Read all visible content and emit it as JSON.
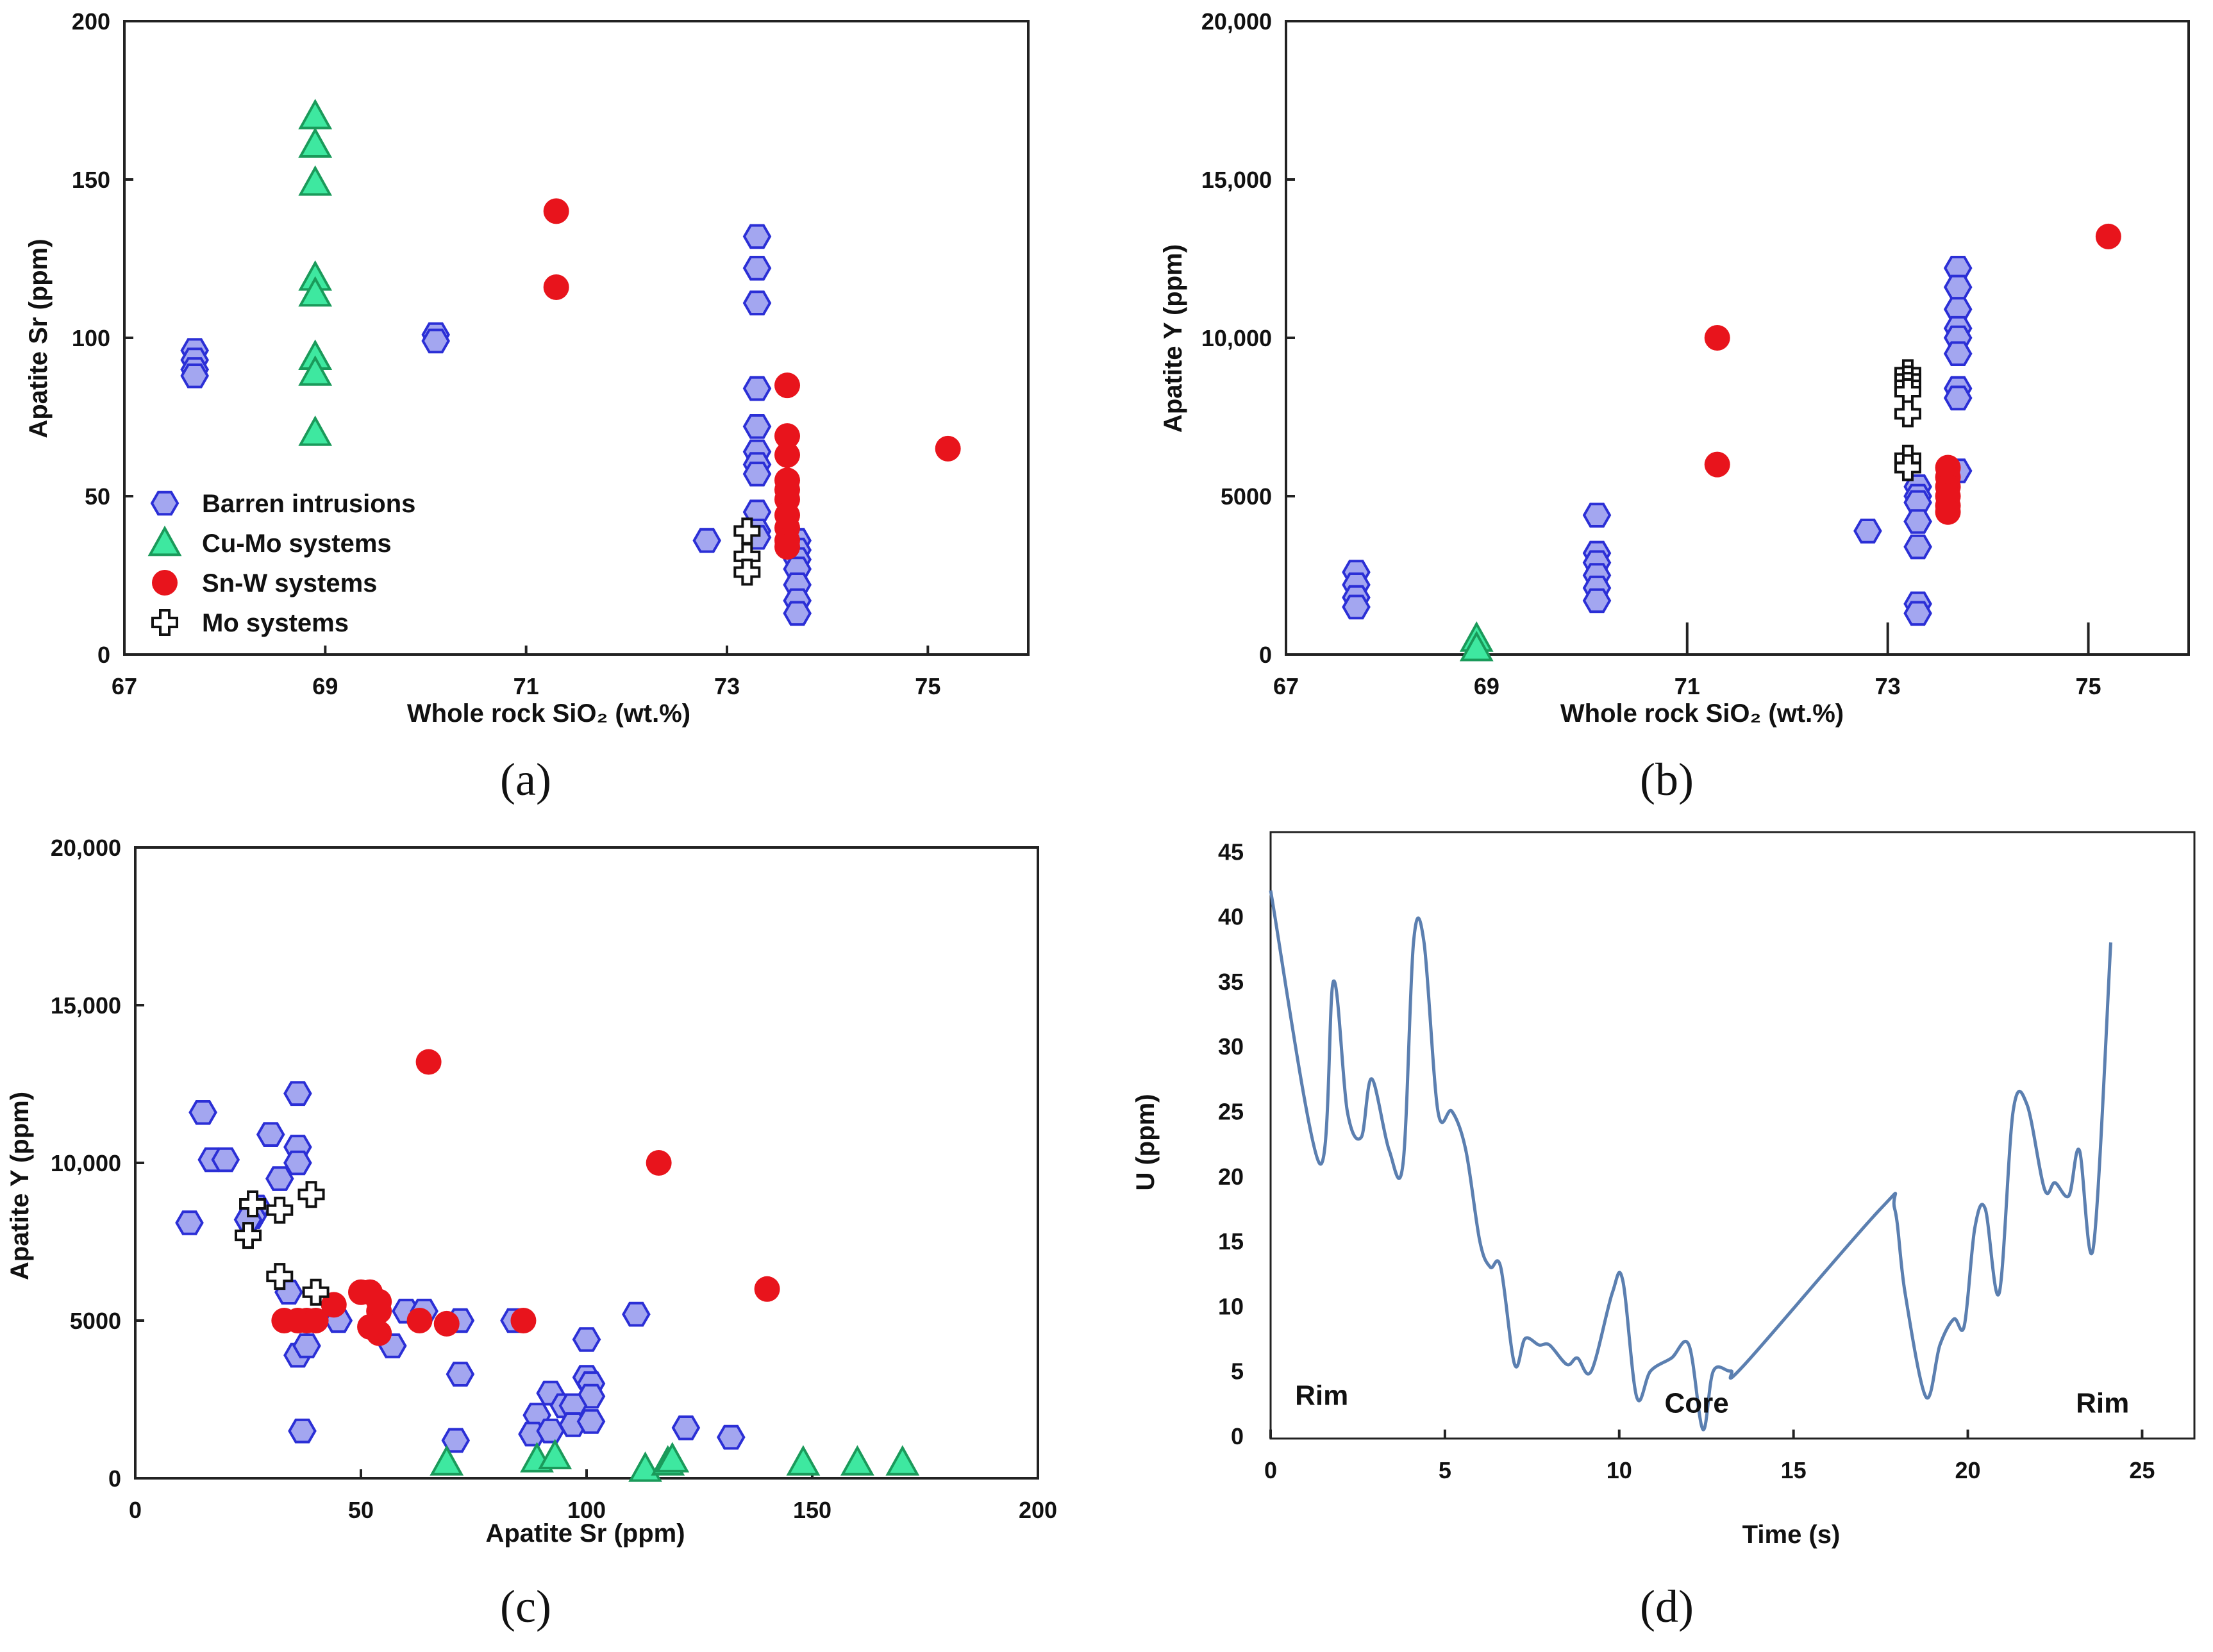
{
  "colors": {
    "barren_fill": "#a3a6f0",
    "barren_stroke": "#2b2fd6",
    "cumo_fill": "#3ee8a0",
    "cumo_stroke": "#1a9a5a",
    "snw_fill": "#e8141c",
    "mo_fill": "#ffffff",
    "mo_stroke": "#111111",
    "line": "#5b7fb0"
  },
  "legend": [
    {
      "key": "barren",
      "label": "Barren intrusions"
    },
    {
      "key": "cumo",
      "label": "Cu-Mo systems"
    },
    {
      "key": "snw",
      "label": "Sn-W systems"
    },
    {
      "key": "mo",
      "label": "Mo systems"
    }
  ],
  "chart_data": [
    {
      "id": "a",
      "panel_label": "(a)",
      "type": "scatter",
      "xlabel": "Whole rock SiO₂ (wt.%)",
      "ylabel": "Apatite Sr (ppm)",
      "xlim": [
        67,
        76
      ],
      "ylim": [
        0,
        200
      ],
      "xticks": [
        67,
        69,
        71,
        73,
        75
      ],
      "xtick_labels": [
        "67",
        "69",
        "71",
        "73",
        "75"
      ],
      "yticks": [
        0,
        50,
        100,
        150,
        200
      ],
      "ytick_labels": [
        "0",
        "50",
        "100",
        "150",
        "200"
      ],
      "legend_position": "bottom-left",
      "series": [
        {
          "name": "Barren intrusions",
          "key": "barren",
          "points": [
            [
              67.7,
              96
            ],
            [
              67.7,
              93
            ],
            [
              67.7,
              90
            ],
            [
              67.7,
              88
            ],
            [
              70.1,
              101
            ],
            [
              70.1,
              99
            ],
            [
              72.8,
              36
            ],
            [
              73.3,
              132
            ],
            [
              73.3,
              122
            ],
            [
              73.3,
              111
            ],
            [
              73.3,
              84
            ],
            [
              73.3,
              72
            ],
            [
              73.3,
              64
            ],
            [
              73.3,
              60
            ],
            [
              73.3,
              57
            ],
            [
              73.3,
              45
            ],
            [
              73.3,
              39
            ],
            [
              73.3,
              37
            ],
            [
              73.7,
              36
            ],
            [
              73.7,
              33
            ],
            [
              73.7,
              30
            ],
            [
              73.7,
              27
            ],
            [
              73.7,
              22
            ],
            [
              73.7,
              17
            ],
            [
              73.7,
              13
            ]
          ]
        },
        {
          "name": "Cu-Mo systems",
          "key": "cumo",
          "points": [
            [
              68.9,
              170
            ],
            [
              68.9,
              161
            ],
            [
              68.9,
              149
            ],
            [
              68.9,
              119
            ],
            [
              68.9,
              114
            ],
            [
              68.9,
              94
            ],
            [
              68.9,
              89
            ],
            [
              68.9,
              70
            ]
          ]
        },
        {
          "name": "Sn-W systems",
          "key": "snw",
          "points": [
            [
              71.3,
              140
            ],
            [
              71.3,
              116
            ],
            [
              73.6,
              85
            ],
            [
              73.6,
              69
            ],
            [
              73.6,
              63
            ],
            [
              73.6,
              55
            ],
            [
              73.6,
              52
            ],
            [
              73.6,
              49
            ],
            [
              73.6,
              44
            ],
            [
              73.6,
              40
            ],
            [
              73.6,
              36
            ],
            [
              73.6,
              34
            ],
            [
              75.2,
              65
            ]
          ]
        },
        {
          "name": "Mo systems",
          "key": "mo",
          "points": [
            [
              73.2,
              39
            ],
            [
              73.2,
              31
            ],
            [
              73.2,
              26
            ]
          ]
        }
      ]
    },
    {
      "id": "b",
      "panel_label": "(b)",
      "type": "scatter",
      "xlabel": "Whole rock SiO₂ (wt.%)",
      "ylabel": "Apatite Y (ppm)",
      "xlim": [
        67,
        76
      ],
      "ylim": [
        0,
        20000
      ],
      "xticks": [
        67,
        69,
        71,
        73,
        75
      ],
      "xtick_labels": [
        "67",
        "69",
        "71",
        "73",
        "75"
      ],
      "yticks": [
        0,
        5000,
        10000,
        15000,
        20000
      ],
      "ytick_labels": [
        "0",
        "5000",
        "10,000",
        "15,000",
        "20,000"
      ],
      "series": [
        {
          "name": "Barren intrusions",
          "key": "barren",
          "points": [
            [
              67.7,
              2600
            ],
            [
              67.7,
              2200
            ],
            [
              67.7,
              1800
            ],
            [
              67.7,
              1500
            ],
            [
              70.1,
              4400
            ],
            [
              70.1,
              3200
            ],
            [
              70.1,
              2900
            ],
            [
              70.1,
              2500
            ],
            [
              70.1,
              2100
            ],
            [
              70.1,
              1700
            ],
            [
              72.8,
              3900
            ],
            [
              73.3,
              5300
            ],
            [
              73.3,
              5000
            ],
            [
              73.3,
              4800
            ],
            [
              73.3,
              4200
            ],
            [
              73.3,
              3400
            ],
            [
              73.3,
              1600
            ],
            [
              73.3,
              1300
            ],
            [
              73.7,
              12200
            ],
            [
              73.7,
              11600
            ],
            [
              73.7,
              10900
            ],
            [
              73.7,
              10300
            ],
            [
              73.7,
              10000
            ],
            [
              73.7,
              9500
            ],
            [
              73.7,
              8400
            ],
            [
              73.7,
              8100
            ],
            [
              73.7,
              5800
            ]
          ]
        },
        {
          "name": "Cu-Mo systems",
          "key": "cumo",
          "points": [
            [
              68.9,
              500
            ],
            [
              68.9,
              200
            ]
          ]
        },
        {
          "name": "Sn-W systems",
          "key": "snw",
          "points": [
            [
              71.3,
              10000
            ],
            [
              71.3,
              6000
            ],
            [
              73.6,
              5900
            ],
            [
              73.6,
              5600
            ],
            [
              73.6,
              5300
            ],
            [
              73.6,
              5000
            ],
            [
              73.6,
              4700
            ],
            [
              73.6,
              4500
            ],
            [
              75.2,
              13200
            ]
          ]
        },
        {
          "name": "Mo systems",
          "key": "mo",
          "points": [
            [
              73.2,
              8900
            ],
            [
              73.2,
              8700
            ],
            [
              73.2,
              8500
            ],
            [
              73.2,
              8300
            ],
            [
              73.2,
              7600
            ],
            [
              73.2,
              6200
            ],
            [
              73.2,
              5900
            ]
          ]
        }
      ]
    },
    {
      "id": "c",
      "panel_label": "(c)",
      "type": "scatter",
      "xlabel": "Apatite Sr (ppm)",
      "ylabel": "Apatite Y (ppm)",
      "xlim": [
        0,
        200
      ],
      "ylim": [
        0,
        20000
      ],
      "xticks": [
        0,
        50,
        100,
        150,
        200
      ],
      "xtick_labels": [
        "0",
        "50",
        "100",
        "150",
        "200"
      ],
      "yticks": [
        0,
        5000,
        10000,
        15000,
        20000
      ],
      "ytick_labels": [
        "0",
        "5000",
        "10,000",
        "15,000",
        "20,000"
      ],
      "series": [
        {
          "name": "Barren intrusions",
          "key": "barren",
          "points": [
            [
              12,
              8100
            ],
            [
              15,
              11600
            ],
            [
              17,
              10100
            ],
            [
              20,
              10100
            ],
            [
              30,
              10900
            ],
            [
              27,
              8600
            ],
            [
              26,
              8300
            ],
            [
              25,
              8200
            ],
            [
              32,
              9500
            ],
            [
              36,
              12200
            ],
            [
              36,
              10500
            ],
            [
              36,
              10000
            ],
            [
              34,
              5900
            ],
            [
              36,
              3900
            ],
            [
              38,
              4200
            ],
            [
              37,
              1500
            ],
            [
              45,
              5000
            ],
            [
              57,
              4200
            ],
            [
              60,
              5300
            ],
            [
              64,
              5300
            ],
            [
              72,
              5000
            ],
            [
              72,
              3300
            ],
            [
              71,
              1200
            ],
            [
              84,
              5000
            ],
            [
              100,
              4400
            ],
            [
              100,
              3200
            ],
            [
              101,
              3000
            ],
            [
              101,
              2600
            ],
            [
              92,
              2700
            ],
            [
              89,
              2000
            ],
            [
              88,
              1400
            ],
            [
              92,
              1500
            ],
            [
              95,
              2300
            ],
            [
              97,
              2300
            ],
            [
              97,
              1700
            ],
            [
              101,
              1800
            ],
            [
              111,
              5200
            ],
            [
              122,
              1600
            ],
            [
              132,
              1300
            ]
          ]
        },
        {
          "name": "Sn-W systems",
          "key": "snw",
          "points": [
            [
              65,
              13200
            ],
            [
              116,
              10000
            ],
            [
              140,
              6000
            ],
            [
              33,
              5000
            ],
            [
              36,
              5000
            ],
            [
              38,
              5000
            ],
            [
              40,
              5000
            ],
            [
              44,
              5500
            ],
            [
              50,
              5900
            ],
            [
              52,
              5900
            ],
            [
              54,
              5600
            ],
            [
              54,
              5300
            ],
            [
              52,
              4800
            ],
            [
              54,
              4600
            ],
            [
              63,
              5000
            ],
            [
              69,
              4900
            ],
            [
              86,
              5000
            ]
          ]
        },
        {
          "name": "Mo systems",
          "key": "mo",
          "points": [
            [
              26,
              8700
            ],
            [
              25,
              7700
            ],
            [
              32,
              8500
            ],
            [
              39,
              9000
            ],
            [
              32,
              6400
            ],
            [
              40,
              5900
            ]
          ]
        },
        {
          "name": "Cu-Mo systems",
          "key": "cumo",
          "points": [
            [
              69,
              500
            ],
            [
              89,
              600
            ],
            [
              93,
              700
            ],
            [
              113,
              300
            ],
            [
              118,
              500
            ],
            [
              119,
              600
            ],
            [
              148,
              500
            ],
            [
              160,
              500
            ],
            [
              170,
              500
            ]
          ]
        }
      ]
    },
    {
      "id": "d",
      "panel_label": "(d)",
      "type": "line",
      "xlabel": "Time (s)",
      "ylabel": "U (ppm)",
      "xlim": [
        0,
        26.5
      ],
      "ylim": [
        -0.2,
        46.5
      ],
      "xticks": [
        0,
        5,
        10,
        15,
        20,
        25
      ],
      "xtick_labels": [
        "0",
        "5",
        "10",
        "15",
        "20",
        "25"
      ],
      "yticks": [
        0,
        5,
        10,
        15,
        20,
        25,
        30,
        35,
        40,
        45
      ],
      "ytick_labels": [
        "0",
        "5",
        "10",
        "15",
        "20",
        "25",
        "30",
        "35",
        "40",
        "45"
      ],
      "annotations": [
        {
          "text": "Rim",
          "x": 0.7,
          "y": 2.4
        },
        {
          "text": "Core",
          "x": 11.3,
          "y": 1.8
        },
        {
          "text": "Rim",
          "x": 23.1,
          "y": 1.8
        }
      ],
      "series": [
        {
          "name": "U",
          "points": [
            [
              0,
              42
            ],
            [
              1.4,
              21
            ],
            [
              1.8,
              35
            ],
            [
              2.2,
              25
            ],
            [
              2.6,
              23
            ],
            [
              2.9,
              27.5
            ],
            [
              3.4,
              22
            ],
            [
              3.8,
              21
            ],
            [
              4.1,
              38
            ],
            [
              4.4,
              38
            ],
            [
              4.8,
              25
            ],
            [
              5.2,
              25
            ],
            [
              5.6,
              22
            ],
            [
              6.0,
              15
            ],
            [
              6.3,
              13
            ],
            [
              6.6,
              13
            ],
            [
              7.0,
              5.5
            ],
            [
              7.3,
              7.5
            ],
            [
              7.7,
              7
            ],
            [
              8.0,
              7
            ],
            [
              8.5,
              5.5
            ],
            [
              8.8,
              6
            ],
            [
              9.2,
              5
            ],
            [
              9.8,
              11
            ],
            [
              10.1,
              12
            ],
            [
              10.5,
              3
            ],
            [
              10.9,
              5
            ],
            [
              11.5,
              6
            ],
            [
              12.0,
              7
            ],
            [
              12.4,
              0.5
            ],
            [
              12.7,
              5
            ],
            [
              13.2,
              5
            ],
            [
              13.6,
              5.5
            ],
            [
              17.5,
              17.5
            ],
            [
              17.9,
              17.5
            ],
            [
              18.2,
              11
            ],
            [
              18.8,
              3
            ],
            [
              19.2,
              7
            ],
            [
              19.6,
              9
            ],
            [
              19.9,
              8.5
            ],
            [
              20.2,
              16
            ],
            [
              20.5,
              17.5
            ],
            [
              20.9,
              11
            ],
            [
              21.3,
              25
            ],
            [
              21.7,
              25.5
            ],
            [
              22.2,
              19
            ],
            [
              22.5,
              19.5
            ],
            [
              22.9,
              18.5
            ],
            [
              23.2,
              22
            ],
            [
              23.6,
              14.5
            ],
            [
              24.1,
              38
            ]
          ]
        }
      ]
    }
  ]
}
